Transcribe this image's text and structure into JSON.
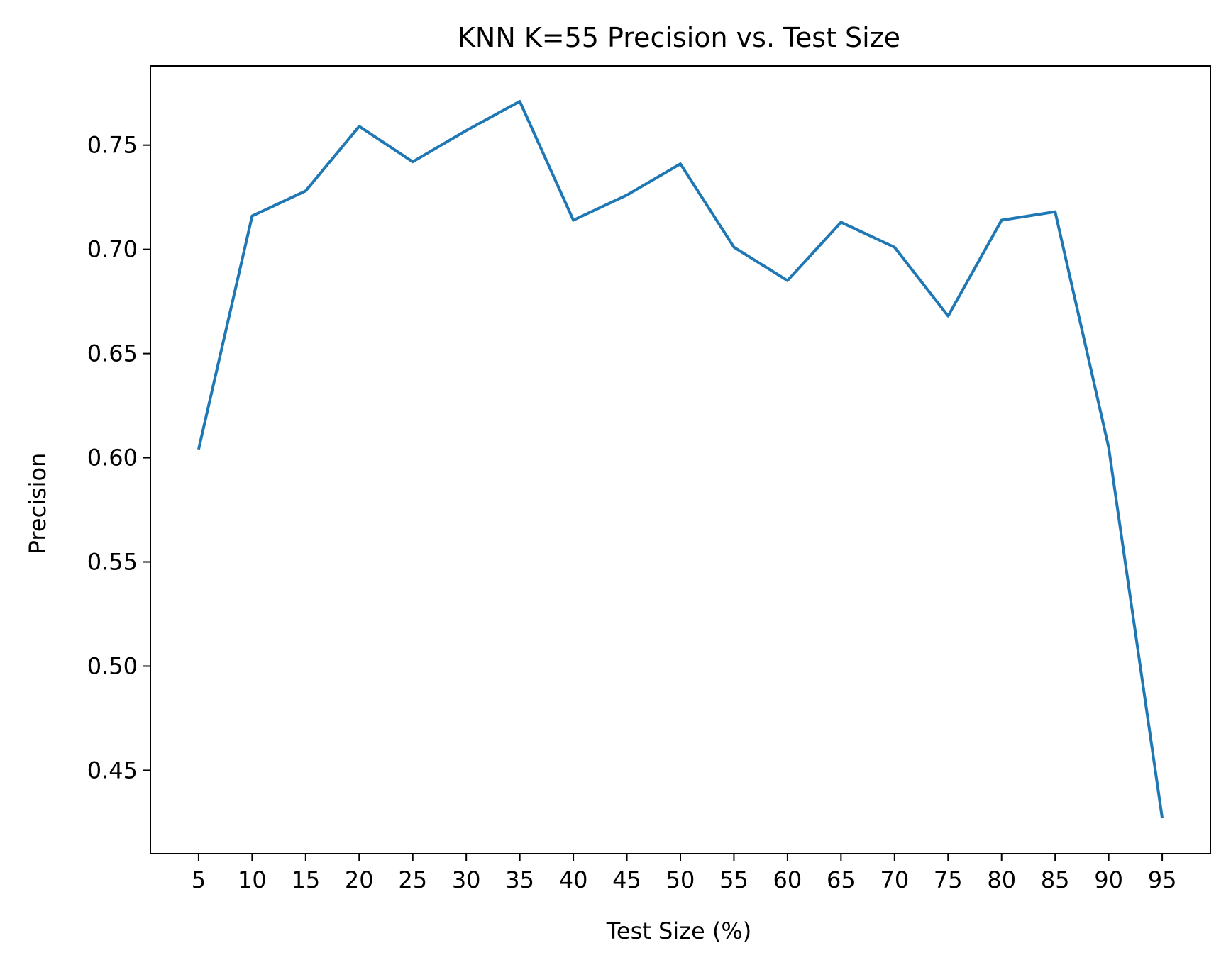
{
  "chart_data": {
    "type": "line",
    "title": "KNN K=55  Precision vs. Test Size",
    "xlabel": "Test Size (%)",
    "ylabel": "Precision",
    "x": [
      5,
      10,
      15,
      20,
      25,
      30,
      35,
      40,
      45,
      50,
      55,
      60,
      65,
      70,
      75,
      80,
      85,
      90,
      95
    ],
    "series": [
      {
        "color": "#1f77b4",
        "values": [
          0.604,
          0.716,
          0.728,
          0.759,
          0.742,
          0.757,
          0.771,
          0.714,
          0.726,
          0.741,
          0.701,
          0.685,
          0.713,
          0.701,
          0.668,
          0.714,
          0.718,
          0.605,
          0.427
        ]
      }
    ],
    "xlim": [
      0.5,
      99.5
    ],
    "ylim": [
      0.41,
      0.788
    ],
    "yticks": [
      0.45,
      0.5,
      0.55,
      0.6,
      0.65,
      0.7,
      0.75
    ],
    "ytick_labels": [
      "0.45",
      "0.50",
      "0.55",
      "0.60",
      "0.65",
      "0.70",
      "0.75"
    ],
    "xtick_labels": [
      "5",
      "10",
      "15",
      "20",
      "25",
      "30",
      "35",
      "40",
      "45",
      "50",
      "55",
      "60",
      "65",
      "70",
      "75",
      "80",
      "85",
      "90",
      "95"
    ],
    "grid": false,
    "legend": false
  }
}
